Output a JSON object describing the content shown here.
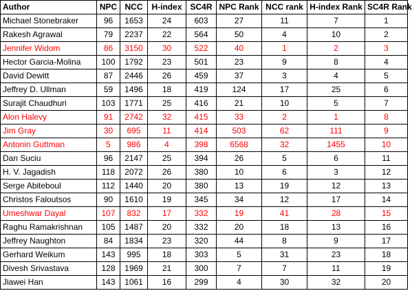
{
  "headers": [
    "Author",
    "NPC",
    "NCC",
    "H-index",
    "SC4R",
    "NPC Rank",
    "NCC rank",
    "H-index Rank",
    "SC4R Rank"
  ],
  "highlight_color": "#ff0000",
  "rows": [
    {
      "author": "Michael Stonebraker",
      "npc": "96",
      "ncc": "1653",
      "hindex": "24",
      "sc4r": "603",
      "npc_rank": "27",
      "ncc_rank": "11",
      "hindex_rank": "7",
      "sc4r_rank": "1",
      "highlight": false
    },
    {
      "author": "Rakesh Agrawal",
      "npc": "79",
      "ncc": "2237",
      "hindex": "22",
      "sc4r": "564",
      "npc_rank": "50",
      "ncc_rank": "4",
      "hindex_rank": "10",
      "sc4r_rank": "2",
      "highlight": false
    },
    {
      "author": "Jennifer Widom",
      "npc": "86",
      "ncc": "3150",
      "hindex": "30",
      "sc4r": "522",
      "npc_rank": "40",
      "ncc_rank": "1",
      "hindex_rank": "2",
      "sc4r_rank": "3",
      "highlight": true
    },
    {
      "author": "Hector Garcia-Molina",
      "npc": "100",
      "ncc": "1792",
      "hindex": "23",
      "sc4r": "501",
      "npc_rank": "23",
      "ncc_rank": "9",
      "hindex_rank": "8",
      "sc4r_rank": "4",
      "highlight": false
    },
    {
      "author": "David Dewitt",
      "npc": "87",
      "ncc": "2446",
      "hindex": "26",
      "sc4r": "459",
      "npc_rank": "37",
      "ncc_rank": "3",
      "hindex_rank": "4",
      "sc4r_rank": "5",
      "highlight": false
    },
    {
      "author": "Jeffrey D. Ullman",
      "npc": "59",
      "ncc": "1496",
      "hindex": "18",
      "sc4r": "419",
      "npc_rank": "124",
      "ncc_rank": "17",
      "hindex_rank": "25",
      "sc4r_rank": "6",
      "highlight": false
    },
    {
      "author": "Surajit Chaudhuri",
      "npc": "103",
      "ncc": "1771",
      "hindex": "25",
      "sc4r": "416",
      "npc_rank": "21",
      "ncc_rank": "10",
      "hindex_rank": "5",
      "sc4r_rank": "7",
      "highlight": false
    },
    {
      "author": "Alon Halevy",
      "npc": "91",
      "ncc": "2742",
      "hindex": "32",
      "sc4r": "415",
      "npc_rank": "33",
      "ncc_rank": "2",
      "hindex_rank": "1",
      "sc4r_rank": "8",
      "highlight": true
    },
    {
      "author": "Jim Gray",
      "npc": "30",
      "ncc": "695",
      "hindex": "11",
      "sc4r": "414",
      "npc_rank": "503",
      "ncc_rank": "62",
      "hindex_rank": "111",
      "sc4r_rank": "9",
      "highlight": true
    },
    {
      "author": "Antonin Guttman",
      "npc": "5",
      "ncc": "986",
      "hindex": "4",
      "sc4r": "398",
      "npc_rank": "6568",
      "ncc_rank": "32",
      "hindex_rank": "1455",
      "sc4r_rank": "10",
      "highlight": true
    },
    {
      "author": "Dan Suciu",
      "npc": "96",
      "ncc": "2147",
      "hindex": "25",
      "sc4r": "394",
      "npc_rank": "26",
      "ncc_rank": "5",
      "hindex_rank": "6",
      "sc4r_rank": "11",
      "highlight": false
    },
    {
      "author": "H. V. Jagadish",
      "npc": "118",
      "ncc": "2072",
      "hindex": "26",
      "sc4r": "380",
      "npc_rank": "10",
      "ncc_rank": "6",
      "hindex_rank": "3",
      "sc4r_rank": "12",
      "highlight": false
    },
    {
      "author": "Serge Abiteboul",
      "npc": "112",
      "ncc": "1440",
      "hindex": "20",
      "sc4r": "380",
      "npc_rank": "13",
      "ncc_rank": "19",
      "hindex_rank": "12",
      "sc4r_rank": "13",
      "highlight": false
    },
    {
      "author": "Christos Faloutsos",
      "npc": "90",
      "ncc": "1610",
      "hindex": "19",
      "sc4r": "345",
      "npc_rank": "34",
      "ncc_rank": "12",
      "hindex_rank": "17",
      "sc4r_rank": "14",
      "highlight": false
    },
    {
      "author": "Umeshwar Dayal",
      "npc": "107",
      "ncc": "832",
      "hindex": "17",
      "sc4r": "332",
      "npc_rank": "19",
      "ncc_rank": "41",
      "hindex_rank": "28",
      "sc4r_rank": "15",
      "highlight": true
    },
    {
      "author": "Raghu Ramakrishnan",
      "npc": "105",
      "ncc": "1487",
      "hindex": "20",
      "sc4r": "332",
      "npc_rank": "20",
      "ncc_rank": "18",
      "hindex_rank": "13",
      "sc4r_rank": "16",
      "highlight": false
    },
    {
      "author": "Jeffrey Naughton",
      "npc": "84",
      "ncc": "1834",
      "hindex": "23",
      "sc4r": "320",
      "npc_rank": "44",
      "ncc_rank": "8",
      "hindex_rank": "9",
      "sc4r_rank": "17",
      "highlight": false
    },
    {
      "author": "Gerhard Weikum",
      "npc": "143",
      "ncc": "995",
      "hindex": "18",
      "sc4r": "303",
      "npc_rank": "5",
      "ncc_rank": "31",
      "hindex_rank": "23",
      "sc4r_rank": "18",
      "highlight": false
    },
    {
      "author": "Divesh Srivastava",
      "npc": "128",
      "ncc": "1969",
      "hindex": "21",
      "sc4r": "300",
      "npc_rank": "7",
      "ncc_rank": "7",
      "hindex_rank": "11",
      "sc4r_rank": "19",
      "highlight": false
    },
    {
      "author": "Jiawei Han",
      "npc": "143",
      "ncc": "1061",
      "hindex": "16",
      "sc4r": "299",
      "npc_rank": "4",
      "ncc_rank": "30",
      "hindex_rank": "32",
      "sc4r_rank": "20",
      "highlight": false
    }
  ]
}
